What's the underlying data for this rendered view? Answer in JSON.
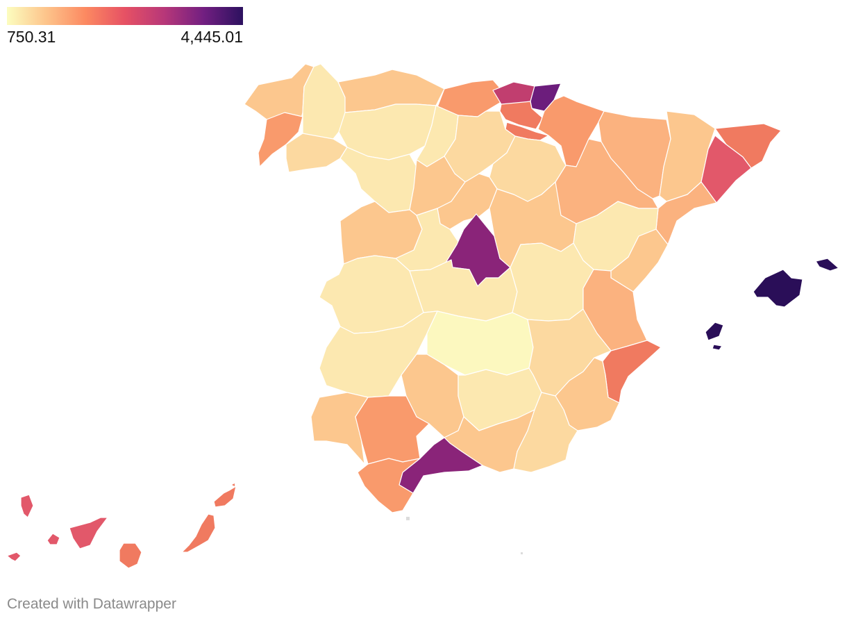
{
  "legend": {
    "min_label": "750.31",
    "max_label": "4,445.01",
    "min_value": 750.31,
    "max_value": 4445.01,
    "stops": [
      "#fcfdbf",
      "#fdc48b",
      "#fc8961",
      "#e65164",
      "#b73779",
      "#721f81",
      "#2c115f"
    ]
  },
  "credit": "Created with Datawrapper",
  "colors": {
    "lightest": "#fcf8bf",
    "very_light": "#fce8b0",
    "light": "#fcd9a0",
    "light_orange": "#fcc78e",
    "orange": "#fbb27f",
    "dark_orange": "#f99a6c",
    "coral": "#f07a60",
    "red": "#e2586a",
    "magenta": "#c13e6f",
    "purple": "#8a2479",
    "dark_purple": "#6c1d7c",
    "darkest": "#2a0e58",
    "border": "#ffffff"
  },
  "regions": [
    {
      "name": "A Coruña",
      "level": "light_orange"
    },
    {
      "name": "Lugo",
      "level": "very_light"
    },
    {
      "name": "Pontevedra",
      "level": "dark_orange"
    },
    {
      "name": "Ourense",
      "level": "light"
    },
    {
      "name": "Asturias",
      "level": "light_orange"
    },
    {
      "name": "Cantabria",
      "level": "dark_orange"
    },
    {
      "name": "Bizkaia",
      "level": "magenta"
    },
    {
      "name": "Gipuzkoa",
      "level": "dark_purple"
    },
    {
      "name": "Álava",
      "level": "coral"
    },
    {
      "name": "Navarra",
      "level": "dark_orange"
    },
    {
      "name": "La Rioja",
      "level": "coral"
    },
    {
      "name": "Huesca",
      "level": "orange"
    },
    {
      "name": "Lleida",
      "level": "light_orange"
    },
    {
      "name": "Girona",
      "level": "coral"
    },
    {
      "name": "Barcelona",
      "level": "red"
    },
    {
      "name": "Tarragona",
      "level": "orange"
    },
    {
      "name": "Zaragoza",
      "level": "orange"
    },
    {
      "name": "León",
      "level": "very_light"
    },
    {
      "name": "Palencia",
      "level": "very_light"
    },
    {
      "name": "Burgos",
      "level": "light"
    },
    {
      "name": "Zamora",
      "level": "very_light"
    },
    {
      "name": "Valladolid",
      "level": "light_orange"
    },
    {
      "name": "Soria",
      "level": "light"
    },
    {
      "name": "Salamanca",
      "level": "light_orange"
    },
    {
      "name": "Segovia",
      "level": "light_orange"
    },
    {
      "name": "Ávila",
      "level": "very_light"
    },
    {
      "name": "Madrid",
      "level": "purple"
    },
    {
      "name": "Guadalajara",
      "level": "light_orange"
    },
    {
      "name": "Teruel",
      "level": "very_light"
    },
    {
      "name": "Castellón",
      "level": "light_orange"
    },
    {
      "name": "Cáceres",
      "level": "very_light"
    },
    {
      "name": "Toledo",
      "level": "very_light"
    },
    {
      "name": "Cuenca",
      "level": "very_light"
    },
    {
      "name": "Valencia",
      "level": "orange"
    },
    {
      "name": "Badajoz",
      "level": "very_light"
    },
    {
      "name": "Ciudad Real",
      "level": "lightest"
    },
    {
      "name": "Albacete",
      "level": "light"
    },
    {
      "name": "Alicante",
      "level": "coral"
    },
    {
      "name": "Córdoba",
      "level": "light_orange"
    },
    {
      "name": "Jaén",
      "level": "very_light"
    },
    {
      "name": "Murcia",
      "level": "light_orange"
    },
    {
      "name": "Huelva",
      "level": "light_orange"
    },
    {
      "name": "Sevilla",
      "level": "dark_orange"
    },
    {
      "name": "Granada",
      "level": "light_orange"
    },
    {
      "name": "Almería",
      "level": "light"
    },
    {
      "name": "Málaga",
      "level": "purple"
    },
    {
      "name": "Cádiz",
      "level": "dark_orange"
    },
    {
      "name": "Mallorca",
      "level": "darkest"
    },
    {
      "name": "Menorca",
      "level": "darkest"
    },
    {
      "name": "Ibiza",
      "level": "darkest"
    },
    {
      "name": "Formentera",
      "level": "darkest"
    },
    {
      "name": "La Palma",
      "level": "red"
    },
    {
      "name": "Tenerife",
      "level": "red"
    },
    {
      "name": "La Gomera",
      "level": "red"
    },
    {
      "name": "El Hierro",
      "level": "red"
    },
    {
      "name": "Gran Canaria",
      "level": "coral"
    },
    {
      "name": "Fuerteventura",
      "level": "coral"
    },
    {
      "name": "Lanzarote",
      "level": "coral"
    }
  ]
}
